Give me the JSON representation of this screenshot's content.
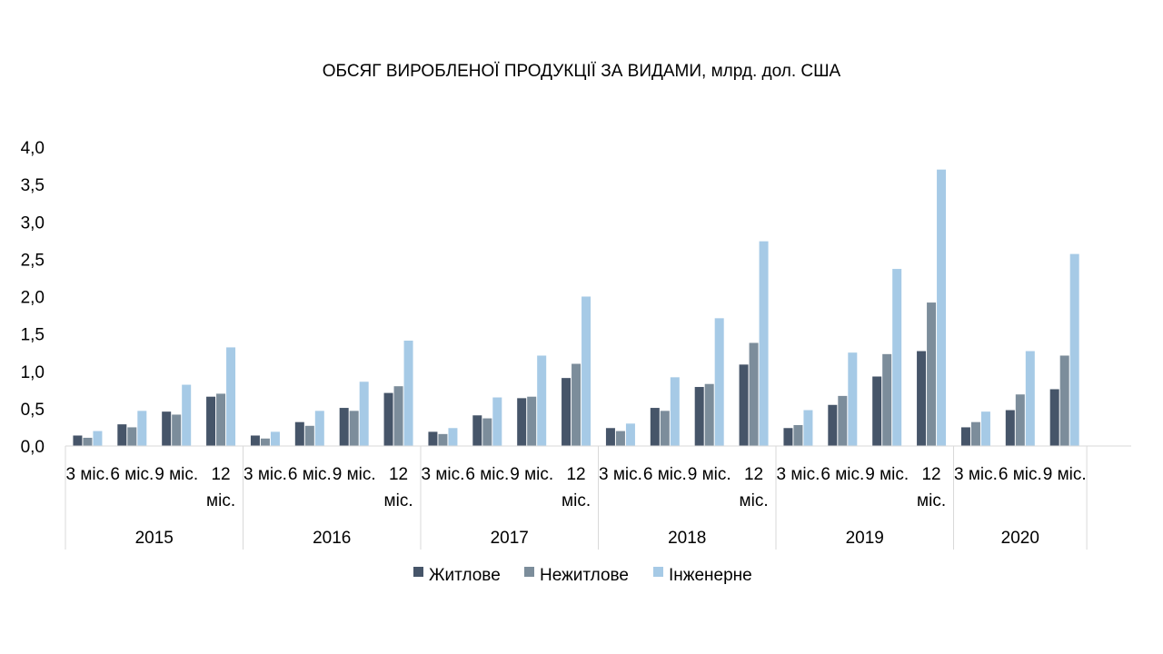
{
  "chart_data": {
    "type": "bar",
    "title": "ОБСЯГ ВИРОБЛЕНОЇ ПРОДУКЦІЇ ЗА ВИДАМИ, млрд. дол. США",
    "xlabel": "",
    "ylabel": "",
    "ylim": [
      0,
      4.0
    ],
    "yticks": [
      "0,0",
      "0,5",
      "1,0",
      "1,5",
      "2,0",
      "2,5",
      "3,0",
      "3,5",
      "4,0"
    ],
    "grid": false,
    "legend_position": "bottom",
    "groups": [
      {
        "label": "2015",
        "categories": [
          "3 міс.",
          "6 міс.",
          "9 міс.",
          "12 міс."
        ]
      },
      {
        "label": "2016",
        "categories": [
          "3 міс.",
          "6 міс.",
          "9 міс.",
          "12 міс."
        ]
      },
      {
        "label": "2017",
        "categories": [
          "3 міс.",
          "6 міс.",
          "9 міс.",
          "12 міс."
        ]
      },
      {
        "label": "2018",
        "categories": [
          "3 міс.",
          "6 міс.",
          "9 міс.",
          "12 міс."
        ]
      },
      {
        "label": "2019",
        "categories": [
          "3 міс.",
          "6 міс.",
          "9 міс.",
          "12 міс."
        ]
      },
      {
        "label": "2020",
        "categories": [
          "3 міс.",
          "6 міс.",
          "9 міс."
        ]
      }
    ],
    "series": [
      {
        "name": "Житлове",
        "color": "#465569",
        "values": [
          0.14,
          0.29,
          0.46,
          0.66,
          0.14,
          0.32,
          0.51,
          0.71,
          0.19,
          0.41,
          0.64,
          0.91,
          0.24,
          0.51,
          0.79,
          1.09,
          0.24,
          0.55,
          0.93,
          1.27,
          0.25,
          0.48,
          0.76
        ]
      },
      {
        "name": "Нежитлове",
        "color": "#7c8d9b",
        "values": [
          0.11,
          0.25,
          0.42,
          0.7,
          0.1,
          0.27,
          0.47,
          0.8,
          0.16,
          0.37,
          0.66,
          1.1,
          0.2,
          0.47,
          0.83,
          1.38,
          0.28,
          0.67,
          1.23,
          1.92,
          0.32,
          0.69,
          1.21
        ]
      },
      {
        "name": "Інженерне",
        "color": "#a6cae6",
        "values": [
          0.2,
          0.47,
          0.82,
          1.32,
          0.19,
          0.47,
          0.86,
          1.41,
          0.24,
          0.65,
          1.21,
          2.0,
          0.3,
          0.92,
          1.71,
          2.74,
          0.48,
          1.25,
          2.37,
          3.7,
          0.46,
          1.27,
          2.57
        ]
      }
    ]
  }
}
